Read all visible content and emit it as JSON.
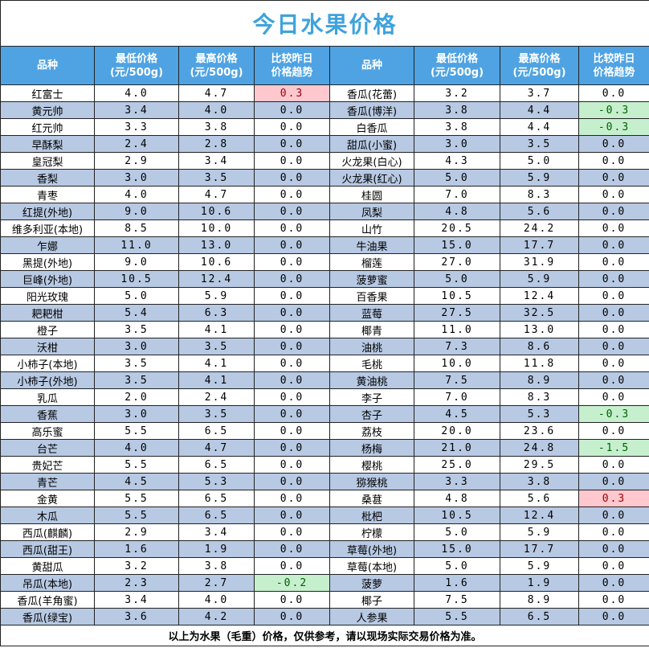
{
  "title": "今日水果价格",
  "table": {
    "header": [
      "品种",
      "最低价格\n(元/500g)",
      "最高价格\n(元/500g)",
      "比较昨日\n价格趋势",
      "品种",
      "最低价格\n(元/500g)",
      "最高价格\n(元/500g)",
      "比较昨日\n价格趋势"
    ],
    "rows": [
      [
        "红富士",
        "4.0",
        "4.7",
        "0.3",
        "香瓜(花蕾)",
        "3.2",
        "3.7",
        "0.0"
      ],
      [
        "黄元帅",
        "3.4",
        "4.0",
        "0.0",
        "香瓜(博洋)",
        "3.8",
        "4.4",
        "-0.3"
      ],
      [
        "红元帅",
        "3.3",
        "3.8",
        "0.0",
        "白香瓜",
        "3.8",
        "4.4",
        "-0.3"
      ],
      [
        "早酥梨",
        "2.4",
        "2.8",
        "0.0",
        "甜瓜(小蜜)",
        "3.0",
        "3.5",
        "0.0"
      ],
      [
        "皇冠梨",
        "2.9",
        "3.4",
        "0.0",
        "火龙果(白心)",
        "4.3",
        "5.0",
        "0.0"
      ],
      [
        "香梨",
        "3.0",
        "3.5",
        "0.0",
        "火龙果(红心)",
        "5.0",
        "5.9",
        "0.0"
      ],
      [
        "青枣",
        "4.0",
        "4.7",
        "0.0",
        "桂圆",
        "7.0",
        "8.3",
        "0.0"
      ],
      [
        "红提(外地)",
        "9.0",
        "10.6",
        "0.0",
        "凤梨",
        "4.8",
        "5.6",
        "0.0"
      ],
      [
        "维多利亚(本地)",
        "8.5",
        "10.0",
        "0.0",
        "山竹",
        "20.5",
        "24.2",
        "0.0"
      ],
      [
        "乍娜",
        "11.0",
        "13.0",
        "0.0",
        "牛油果",
        "15.0",
        "17.7",
        "0.0"
      ],
      [
        "黑提(外地)",
        "9.0",
        "10.6",
        "0.0",
        "榴莲",
        "27.0",
        "31.9",
        "0.0"
      ],
      [
        "巨峰(外地)",
        "10.5",
        "12.4",
        "0.0",
        "菠萝蜜",
        "5.0",
        "5.9",
        "0.0"
      ],
      [
        "阳光玫瑰",
        "5.0",
        "5.9",
        "0.0",
        "百香果",
        "10.5",
        "12.4",
        "0.0"
      ],
      [
        "耙耙柑",
        "5.4",
        "6.3",
        "0.0",
        "蓝莓",
        "27.5",
        "32.5",
        "0.0"
      ],
      [
        "橙子",
        "3.5",
        "4.1",
        "0.0",
        "椰青",
        "11.0",
        "13.0",
        "0.0"
      ],
      [
        "沃柑",
        "3.0",
        "3.5",
        "0.0",
        "油桃",
        "7.3",
        "8.6",
        "0.0"
      ],
      [
        "小柿子(本地)",
        "3.5",
        "4.1",
        "0.0",
        "毛桃",
        "10.0",
        "11.8",
        "0.0"
      ],
      [
        "小柿子(外地)",
        "3.5",
        "4.1",
        "0.0",
        "黄油桃",
        "7.5",
        "8.9",
        "0.0"
      ],
      [
        "乳瓜",
        "2.0",
        "2.4",
        "0.0",
        "李子",
        "7.0",
        "8.3",
        "0.0"
      ],
      [
        "香蕉",
        "3.0",
        "3.5",
        "0.0",
        "杏子",
        "4.5",
        "5.3",
        "-0.3"
      ],
      [
        "高乐蜜",
        "5.5",
        "6.5",
        "0.0",
        "荔枝",
        "20.0",
        "23.6",
        "0.0"
      ],
      [
        "台芒",
        "4.0",
        "4.7",
        "0.0",
        "杨梅",
        "21.0",
        "24.8",
        "-1.5"
      ],
      [
        "贵妃芒",
        "5.5",
        "6.5",
        "0.0",
        "樱桃",
        "25.0",
        "29.5",
        "0.0"
      ],
      [
        "青芒",
        "4.5",
        "5.3",
        "0.0",
        "猕猴桃",
        "3.3",
        "3.8",
        "0.0"
      ],
      [
        "金黄",
        "5.5",
        "6.5",
        "0.0",
        "桑葚",
        "4.8",
        "5.6",
        "0.3"
      ],
      [
        "木瓜",
        "5.5",
        "6.5",
        "0.0",
        "枇杷",
        "10.5",
        "12.4",
        "0.0"
      ],
      [
        "西瓜(麒麟)",
        "2.9",
        "3.4",
        "0.0",
        "柠檬",
        "5.0",
        "5.9",
        "0.0"
      ],
      [
        "西瓜(甜王)",
        "1.6",
        "1.9",
        "0.0",
        "草莓(外地)",
        "15.0",
        "17.7",
        "0.0"
      ],
      [
        "黄甜瓜",
        "3.2",
        "3.8",
        "0.0",
        "草莓(本地)",
        "5.0",
        "5.9",
        "0.0"
      ],
      [
        "吊瓜(本地)",
        "2.3",
        "2.7",
        "-0.2",
        "菠萝",
        "1.6",
        "1.9",
        "0.0"
      ],
      [
        "香瓜(羊角蜜)",
        "3.4",
        "4.0",
        "0.0",
        "椰子",
        "7.5",
        "8.9",
        "0.0"
      ],
      [
        "香瓜(绿宝)",
        "3.6",
        "4.2",
        "0.0",
        "人参果",
        "5.5",
        "6.5",
        "0.0"
      ]
    ]
  },
  "footer": "以上为水果（毛重）价格，仅供参考，请以现场实际交易价格为准。"
}
